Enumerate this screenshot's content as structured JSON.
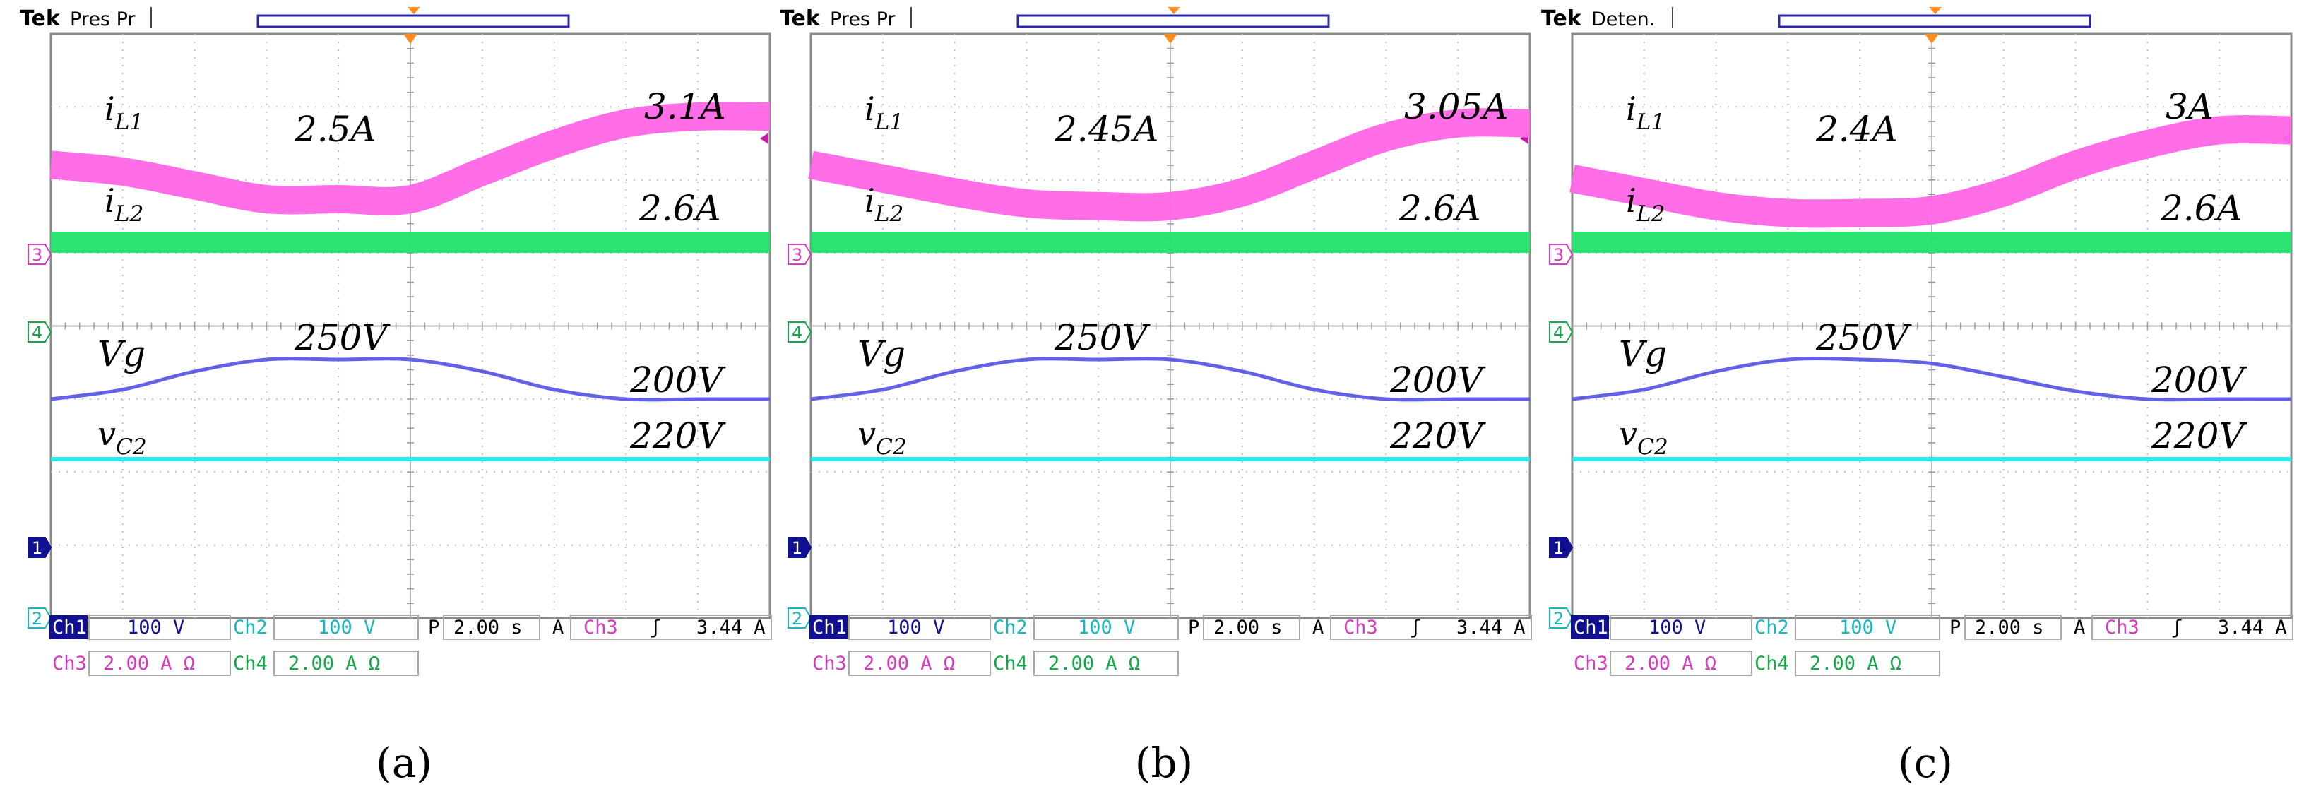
{
  "panels": [
    {
      "caption": "(a)",
      "tek": "Tek",
      "mode": "Pres Pr",
      "annotations": {
        "iL1": "2.5A",
        "iL1_b": "3.1A",
        "iL2": "2.6A",
        "vg": "250V",
        "vg_b": "200V",
        "vc2": "220V"
      },
      "readout": {
        "ch1": "Ch1",
        "ch1_scale": "100 V",
        "ch2": "Ch2",
        "ch2_scale": "100 V",
        "ch3": "Ch3",
        "ch3_scale": "2.00 A Ω",
        "ch4": "Ch4",
        "ch4_scale": "2.00 A Ω",
        "timebase_label": "P",
        "timebase": "2.00 s",
        "trig_a": "A",
        "trig_ch": "Ch3",
        "trig_slope": "ʃ",
        "trig_level": "3.44 A"
      }
    },
    {
      "caption": "(b)",
      "tek": "Tek",
      "mode": "Pres Pr",
      "annotations": {
        "iL1": "2.45A",
        "iL1_b": "3.05A",
        "iL2": "2.6A",
        "vg": "250V",
        "vg_b": "200V",
        "vc2": "220V"
      },
      "readout": {
        "ch1": "Ch1",
        "ch1_scale": "100 V",
        "ch2": "Ch2",
        "ch2_scale": "100 V",
        "ch3": "Ch3",
        "ch3_scale": "2.00 A Ω",
        "ch4": "Ch4",
        "ch4_scale": "2.00 A Ω",
        "timebase_label": "P",
        "timebase": "2.00 s",
        "trig_a": "A",
        "trig_ch": "Ch3",
        "trig_slope": "ʃ",
        "trig_level": "3.44 A"
      }
    },
    {
      "caption": "(c)",
      "tek": "Tek",
      "mode": "Deten.",
      "annotations": {
        "iL1": "2.4A",
        "iL1_b": "3A",
        "iL2": "2.6A",
        "vg": "250V",
        "vg_b": "200V",
        "vc2": "220V"
      },
      "readout": {
        "ch1": "Ch1",
        "ch1_scale": "100 V",
        "ch2": "Ch2",
        "ch2_scale": "100 V",
        "ch3": "Ch3",
        "ch3_scale": "2.00 A Ω",
        "ch4": "Ch4",
        "ch4_scale": "2.00 A Ω",
        "timebase_label": "P",
        "timebase": "2.00 s",
        "trig_a": "A",
        "trig_ch": "Ch3",
        "trig_slope": "ʃ",
        "trig_level": "3.44 A"
      }
    }
  ],
  "labels": {
    "iL1": "i",
    "iL1_sub": "L1",
    "iL2": "i",
    "iL2_sub": "L2",
    "vg": "Vg",
    "vc2": "v",
    "vc2_sub": "C2",
    "marker3": "3",
    "marker4": "4",
    "marker1": "1",
    "marker2": "2"
  },
  "colors": {
    "iL1": "#ff66e6",
    "iL2": "#22e36a",
    "vg": "#5a5ae6",
    "vc2": "#22e6f0",
    "ch1_box": "#101090",
    "ch1_text": "#ffffff",
    "ch2_text": "#16b8bf",
    "ch3_text": "#d63bbd",
    "ch4_text": "#14a84a"
  },
  "chart_data": [
    {
      "type": "line",
      "panel": "(a)",
      "x_unit": "div",
      "x": [
        0,
        1,
        2,
        3,
        4,
        5,
        6,
        7,
        8,
        9,
        10
      ],
      "series": [
        {
          "key": "iL1",
          "values": [
            2.75,
            2.7,
            2.6,
            2.5,
            2.5,
            2.5,
            2.7,
            2.9,
            3.05,
            3.1,
            3.1
          ]
        },
        {
          "key": "iL2",
          "values": [
            2.6,
            2.6,
            2.6,
            2.6,
            2.6,
            2.6,
            2.6,
            2.6,
            2.6,
            2.6,
            2.6
          ]
        },
        {
          "key": "vg",
          "values": [
            200,
            212,
            235,
            250,
            250,
            250,
            235,
            212,
            200,
            200,
            200
          ]
        },
        {
          "key": "vc2",
          "values": [
            220,
            220,
            220,
            220,
            220,
            220,
            220,
            220,
            220,
            220,
            220
          ]
        }
      ]
    },
    {
      "type": "line",
      "panel": "(b)",
      "x_unit": "div",
      "x": [
        0,
        1,
        2,
        3,
        4,
        5,
        6,
        7,
        8,
        9,
        10
      ],
      "series": [
        {
          "key": "iL1",
          "values": [
            2.75,
            2.65,
            2.55,
            2.47,
            2.45,
            2.45,
            2.55,
            2.75,
            2.95,
            3.05,
            3.05
          ]
        },
        {
          "key": "iL2",
          "values": [
            2.6,
            2.6,
            2.6,
            2.6,
            2.6,
            2.6,
            2.6,
            2.6,
            2.6,
            2.6,
            2.6
          ]
        },
        {
          "key": "vg",
          "values": [
            200,
            212,
            235,
            250,
            250,
            250,
            235,
            212,
            200,
            200,
            200
          ]
        },
        {
          "key": "vc2",
          "values": [
            220,
            220,
            220,
            220,
            220,
            220,
            220,
            220,
            220,
            220,
            220
          ]
        }
      ]
    },
    {
      "type": "line",
      "panel": "(c)",
      "x_unit": "div",
      "x": [
        0,
        1,
        2,
        3,
        4,
        5,
        6,
        7,
        8,
        9,
        10
      ],
      "series": [
        {
          "key": "iL1",
          "values": [
            2.65,
            2.55,
            2.45,
            2.4,
            2.4,
            2.42,
            2.55,
            2.75,
            2.9,
            3.0,
            3.0
          ]
        },
        {
          "key": "iL2",
          "values": [
            2.6,
            2.6,
            2.6,
            2.6,
            2.6,
            2.6,
            2.6,
            2.6,
            2.6,
            2.6,
            2.6
          ]
        },
        {
          "key": "vg",
          "values": [
            200,
            212,
            235,
            250,
            250,
            245,
            228,
            210,
            200,
            200,
            200
          ]
        },
        {
          "key": "vc2",
          "values": [
            220,
            220,
            220,
            220,
            220,
            220,
            220,
            220,
            220,
            220,
            220
          ]
        }
      ]
    }
  ]
}
